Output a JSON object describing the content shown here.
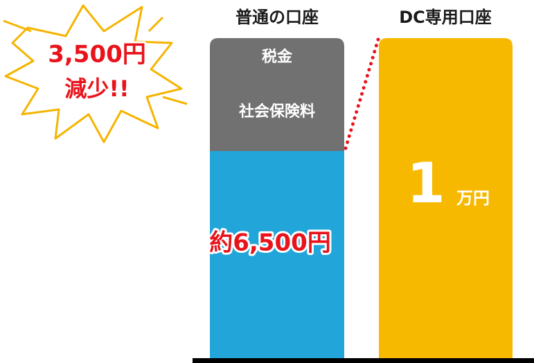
{
  "headers": {
    "left": "普通の口座",
    "right": "DC専用口座"
  },
  "left_bar": {
    "top_labels": [
      "税金",
      "社会保険料"
    ],
    "amount": "約6,500円"
  },
  "right_bar": {
    "amount_number": "1",
    "amount_unit": "万円"
  },
  "callout": {
    "amount": "3,500円",
    "text": "減少!!"
  }
}
